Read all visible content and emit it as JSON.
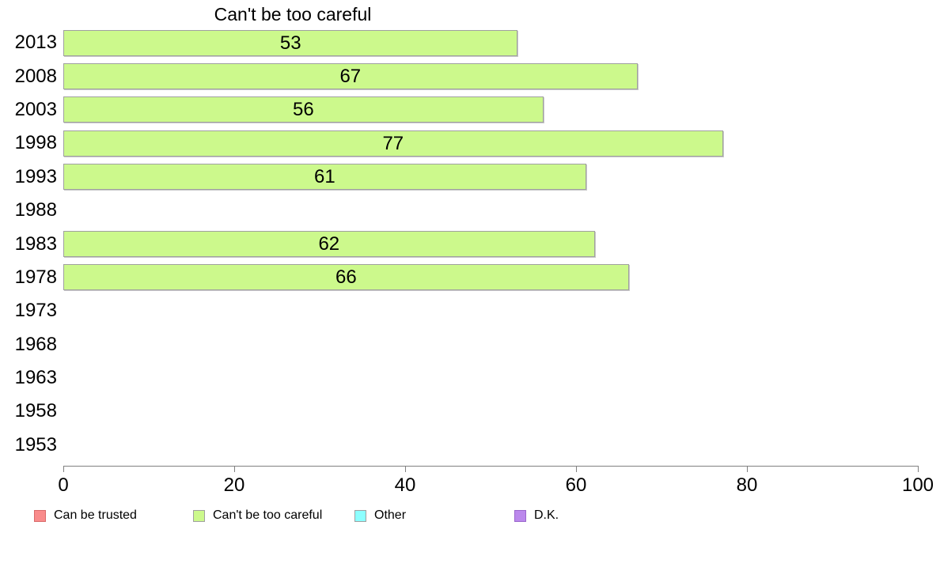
{
  "chart_data": {
    "type": "bar",
    "orientation": "horizontal",
    "title": "Can't be too careful",
    "categories": [
      "2013",
      "2008",
      "2003",
      "1998",
      "1993",
      "1988",
      "1983",
      "1978",
      "1973",
      "1968",
      "1963",
      "1958",
      "1953"
    ],
    "values": [
      53,
      67,
      56,
      77,
      61,
      null,
      62,
      66,
      null,
      null,
      null,
      null,
      null
    ],
    "xlabel": "",
    "ylabel": "",
    "xlim": [
      0,
      100
    ],
    "x_ticks": [
      0,
      20,
      40,
      60,
      80,
      100
    ],
    "grid": false,
    "bar_color": "#ccf98c",
    "bar_border_color": "#a0a0a0",
    "value_labels_shown": true,
    "legend_position": "bottom",
    "legend": [
      {
        "label": "Can be trusted",
        "color": "#f98b8b",
        "border": "#d96a6a"
      },
      {
        "label": "Can't be too careful",
        "color": "#ccf98c",
        "border": "#a0a0a0"
      },
      {
        "label": "Other",
        "color": "#8cffff",
        "border": "#a0a0a0"
      },
      {
        "label": "D.K.",
        "color": "#bb88ec",
        "border": "#9a66cc"
      }
    ]
  }
}
